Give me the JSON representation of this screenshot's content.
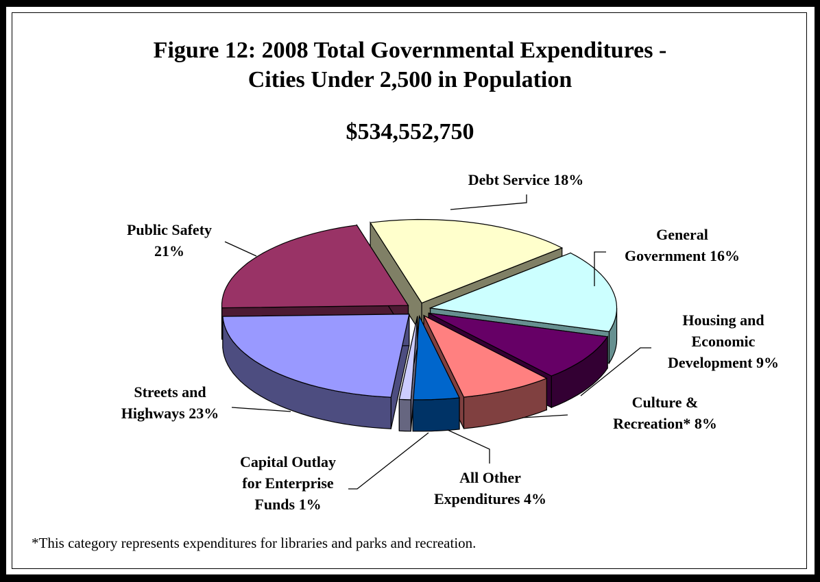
{
  "chart_data": {
    "type": "pie",
    "title": "Figure 12: 2008 Total Governmental Expenditures -",
    "title_line2": "Cities Under 2,500 in Population",
    "subtitle": "$534,552,750",
    "slices": [
      {
        "label": "Debt Service 18%",
        "value": 18,
        "color": "#ffffcc",
        "side": "#808066"
      },
      {
        "label": "General Government 16%",
        "value": 16,
        "color": "#ccffff",
        "side": "#669090"
      },
      {
        "label": "Housing and Economic Development 9%",
        "value": 9,
        "color": "#660066",
        "side": "#330033"
      },
      {
        "label": "Culture & Recreation* 8%",
        "value": 8,
        "color": "#ff8080",
        "side": "#804040"
      },
      {
        "label": "All Other Expenditures 4%",
        "value": 4,
        "color": "#0066cc",
        "side": "#003366"
      },
      {
        "label": "Capital Outlay for Enterprise Funds 1%",
        "value": 1,
        "color": "#ccccff",
        "side": "#666680"
      },
      {
        "label": "Streets and Highways 23%",
        "value": 23,
        "color": "#9999ff",
        "side": "#4d4d80"
      },
      {
        "label": "Public Safety 21%",
        "value": 21,
        "color": "#993366",
        "side": "#4d1a33"
      }
    ],
    "label_lines": {
      "debt": [
        "Debt Service 18%"
      ],
      "general": [
        "General",
        "Government 16%"
      ],
      "housing": [
        "Housing and",
        "Economic",
        "Development 9%"
      ],
      "culture": [
        "Culture &",
        "Recreation* 8%"
      ],
      "other": [
        "All Other",
        "Expenditures 4%"
      ],
      "capital": [
        "Capital Outlay",
        "for Enterprise",
        "Funds 1%"
      ],
      "streets": [
        "Streets and",
        "Highways 23%"
      ],
      "public": [
        "Public Safety",
        "21%"
      ]
    }
  },
  "footnote": "*This category represents expenditures for libraries and parks and recreation."
}
